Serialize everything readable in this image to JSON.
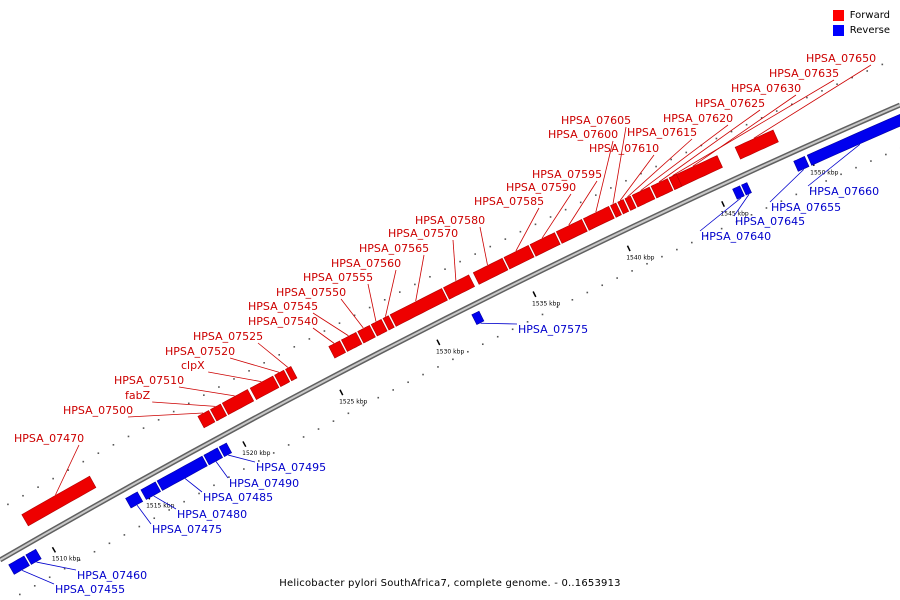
{
  "legend": [
    {
      "label": "Forward",
      "color": "#ff0000"
    },
    {
      "label": "Reverse",
      "color": "#0000ff"
    }
  ],
  "caption": "Helicobacter pylori SouthAfrica7, complete genome. - 0..1653913",
  "colors": {
    "forward": "#ee0000",
    "reverse": "#0000ee",
    "backbone": "#909090",
    "label_forward": "#cc0000",
    "label_reverse": "#0000cc"
  },
  "scale": [
    {
      "label": "1510 kbp",
      "kbp": 1510
    },
    {
      "label": "1515 kbp",
      "kbp": 1515
    },
    {
      "label": "1520 kbp",
      "kbp": 1520
    },
    {
      "label": "1525 kbp",
      "kbp": 1525
    },
    {
      "label": "1530 kbp",
      "kbp": 1530
    },
    {
      "label": "1535 kbp",
      "kbp": 1535
    },
    {
      "label": "1540 kbp",
      "kbp": 1540
    },
    {
      "label": "1545 kbp",
      "kbp": 1545
    },
    {
      "label": "1550 kbp",
      "kbp": 1550
    }
  ],
  "genes": [
    {
      "name": "HPSA_07455",
      "strand": "reverse"
    },
    {
      "name": "HPSA_07460",
      "strand": "reverse"
    },
    {
      "name": "HPSA_07470",
      "strand": "forward"
    },
    {
      "name": "HPSA_07475",
      "strand": "reverse"
    },
    {
      "name": "HPSA_07480",
      "strand": "reverse"
    },
    {
      "name": "HPSA_07485",
      "strand": "reverse"
    },
    {
      "name": "HPSA_07490",
      "strand": "reverse"
    },
    {
      "name": "HPSA_07495",
      "strand": "reverse"
    },
    {
      "name": "HPSA_07500",
      "strand": "forward"
    },
    {
      "name": "fabZ",
      "strand": "forward"
    },
    {
      "name": "HPSA_07510",
      "strand": "forward"
    },
    {
      "name": "clpX",
      "strand": "forward"
    },
    {
      "name": "HPSA_07520",
      "strand": "forward"
    },
    {
      "name": "HPSA_07525",
      "strand": "forward"
    },
    {
      "name": "HPSA_07540",
      "strand": "forward"
    },
    {
      "name": "HPSA_07545",
      "strand": "forward"
    },
    {
      "name": "HPSA_07550",
      "strand": "forward"
    },
    {
      "name": "HPSA_07555",
      "strand": "forward"
    },
    {
      "name": "HPSA_07560",
      "strand": "forward"
    },
    {
      "name": "HPSA_07565",
      "strand": "forward"
    },
    {
      "name": "HPSA_07570",
      "strand": "forward"
    },
    {
      "name": "HPSA_07575",
      "strand": "reverse"
    },
    {
      "name": "HPSA_07580",
      "strand": "forward"
    },
    {
      "name": "HPSA_07585",
      "strand": "forward"
    },
    {
      "name": "HPSA_07590",
      "strand": "forward"
    },
    {
      "name": "HPSA_07595",
      "strand": "forward"
    },
    {
      "name": "HPSA_07600",
      "strand": "forward"
    },
    {
      "name": "HPSA_07605",
      "strand": "forward"
    },
    {
      "name": "HPSA_07610",
      "strand": "forward"
    },
    {
      "name": "HPSA_07615",
      "strand": "forward"
    },
    {
      "name": "HPSA_07620",
      "strand": "forward"
    },
    {
      "name": "HPSA_07625",
      "strand": "forward"
    },
    {
      "name": "HPSA_07630",
      "strand": "forward"
    },
    {
      "name": "HPSA_07635",
      "strand": "forward"
    },
    {
      "name": "HPSA_07640",
      "strand": "reverse"
    },
    {
      "name": "HPSA_07645",
      "strand": "reverse"
    },
    {
      "name": "HPSA_07650",
      "strand": "forward"
    },
    {
      "name": "HPSA_07655",
      "strand": "reverse"
    },
    {
      "name": "HPSA_07660",
      "strand": "reverse"
    }
  ]
}
